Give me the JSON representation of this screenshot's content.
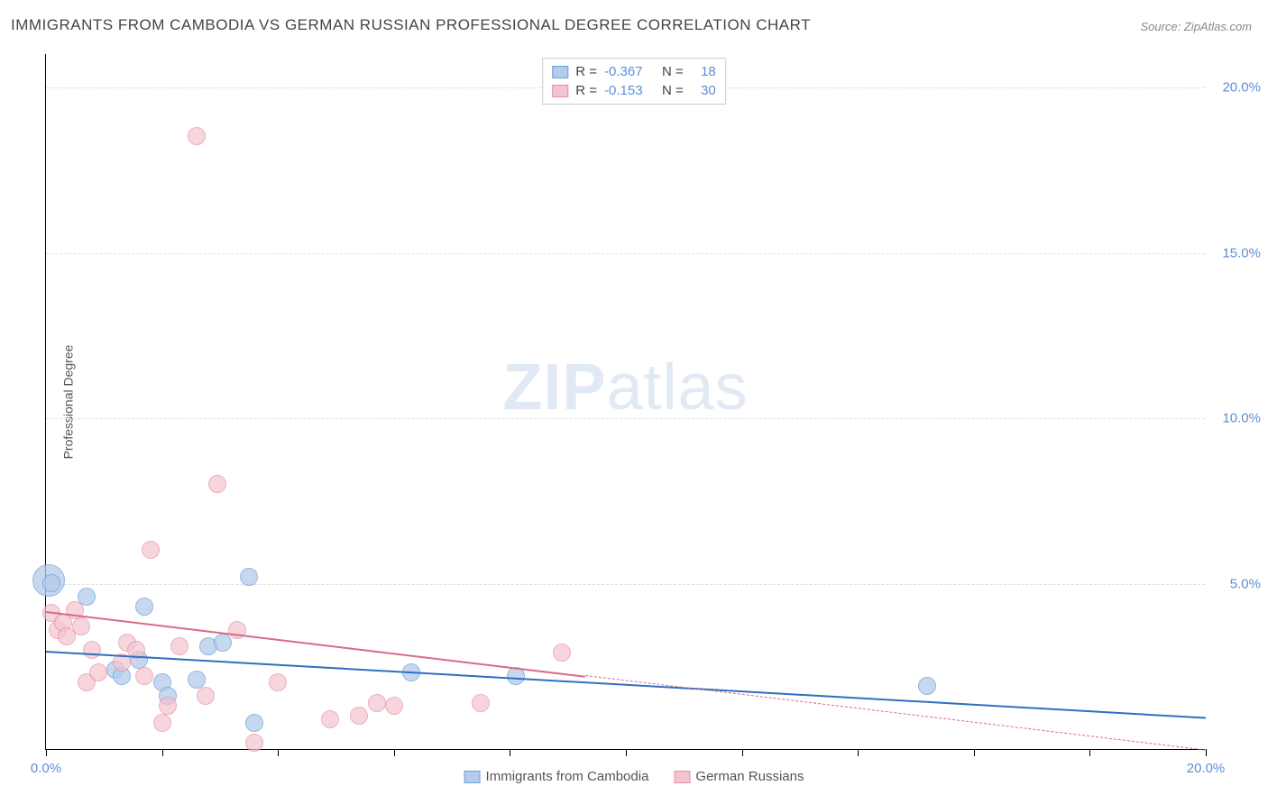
{
  "chart": {
    "type": "scatter",
    "title": "IMMIGRANTS FROM CAMBODIA VS GERMAN RUSSIAN PROFESSIONAL DEGREE CORRELATION CHART",
    "source": "Source: ZipAtlas.com",
    "watermark_text_bold": "ZIP",
    "watermark_text_rest": "atlas",
    "y_axis_label": "Professional Degree",
    "xlim": [
      0,
      20
    ],
    "ylim": [
      0,
      21
    ],
    "x_ticks": [
      0,
      2,
      4,
      6,
      8,
      10,
      12,
      14,
      16,
      18,
      20
    ],
    "x_tick_labels": {
      "0": "0.0%",
      "20": "20.0%"
    },
    "y_ticks": [
      5,
      10,
      15,
      20
    ],
    "y_tick_labels": {
      "5": "5.0%",
      "10": "10.0%",
      "15": "15.0%",
      "20": "20.0%"
    },
    "background_color": "#ffffff",
    "grid_color": "#dddddd",
    "axis_color": "#000000",
    "tick_label_color": "#5b8fd6",
    "title_color": "#444444",
    "title_fontsize": 17,
    "label_fontsize": 14,
    "tick_fontsize": 15
  },
  "series": [
    {
      "name": "Immigrants from Cambodia",
      "color_fill": "#b4cceb",
      "color_stroke": "#6f9fd8",
      "marker_opacity": 0.75,
      "marker_radius": 10,
      "R": "-0.367",
      "N": "18",
      "trend": {
        "x1": 0,
        "y1": 3.0,
        "x2": 20,
        "y2": 1.0,
        "color": "#2e6fc0",
        "width": 2,
        "dash_from_x": null
      },
      "points": [
        {
          "x": 0.05,
          "y": 5.1,
          "r": 18
        },
        {
          "x": 0.1,
          "y": 5.0,
          "r": 10
        },
        {
          "x": 0.7,
          "y": 4.6,
          "r": 10
        },
        {
          "x": 1.2,
          "y": 2.4,
          "r": 10
        },
        {
          "x": 1.3,
          "y": 2.2,
          "r": 10
        },
        {
          "x": 1.6,
          "y": 2.7,
          "r": 10
        },
        {
          "x": 1.7,
          "y": 4.3,
          "r": 10
        },
        {
          "x": 2.0,
          "y": 2.0,
          "r": 10
        },
        {
          "x": 2.1,
          "y": 1.6,
          "r": 10
        },
        {
          "x": 2.6,
          "y": 2.1,
          "r": 10
        },
        {
          "x": 2.8,
          "y": 3.1,
          "r": 10
        },
        {
          "x": 3.05,
          "y": 3.2,
          "r": 10
        },
        {
          "x": 3.5,
          "y": 5.2,
          "r": 10
        },
        {
          "x": 3.6,
          "y": 0.8,
          "r": 10
        },
        {
          "x": 6.3,
          "y": 2.3,
          "r": 10
        },
        {
          "x": 8.1,
          "y": 2.2,
          "r": 10
        },
        {
          "x": 15.2,
          "y": 1.9,
          "r": 10
        }
      ]
    },
    {
      "name": "German Russians",
      "color_fill": "#f3c4cf",
      "color_stroke": "#e78fa4",
      "marker_opacity": 0.7,
      "marker_radius": 10,
      "R": "-0.153",
      "N": "30",
      "trend": {
        "x1": 0,
        "y1": 4.2,
        "x2": 20,
        "y2": 0.0,
        "color": "#d96a88",
        "width": 2,
        "dash_from_x": 9.3
      },
      "points": [
        {
          "x": 0.1,
          "y": 4.1,
          "r": 10
        },
        {
          "x": 0.2,
          "y": 3.6,
          "r": 10
        },
        {
          "x": 0.3,
          "y": 3.8,
          "r": 10
        },
        {
          "x": 0.35,
          "y": 3.4,
          "r": 10
        },
        {
          "x": 0.5,
          "y": 4.2,
          "r": 10
        },
        {
          "x": 0.6,
          "y": 3.7,
          "r": 10
        },
        {
          "x": 0.7,
          "y": 2.0,
          "r": 10
        },
        {
          "x": 0.8,
          "y": 3.0,
          "r": 10
        },
        {
          "x": 0.9,
          "y": 2.3,
          "r": 10
        },
        {
          "x": 1.3,
          "y": 2.6,
          "r": 10
        },
        {
          "x": 1.4,
          "y": 3.2,
          "r": 10
        },
        {
          "x": 1.55,
          "y": 3.0,
          "r": 10
        },
        {
          "x": 1.7,
          "y": 2.2,
          "r": 10
        },
        {
          "x": 1.8,
          "y": 6.0,
          "r": 10
        },
        {
          "x": 2.0,
          "y": 0.8,
          "r": 10
        },
        {
          "x": 2.1,
          "y": 1.3,
          "r": 10
        },
        {
          "x": 2.3,
          "y": 3.1,
          "r": 10
        },
        {
          "x": 2.6,
          "y": 18.5,
          "r": 10
        },
        {
          "x": 2.75,
          "y": 1.6,
          "r": 10
        },
        {
          "x": 2.95,
          "y": 8.0,
          "r": 10
        },
        {
          "x": 3.3,
          "y": 3.6,
          "r": 10
        },
        {
          "x": 3.6,
          "y": 0.2,
          "r": 10
        },
        {
          "x": 4.0,
          "y": 2.0,
          "r": 10
        },
        {
          "x": 4.9,
          "y": 0.9,
          "r": 10
        },
        {
          "x": 5.4,
          "y": 1.0,
          "r": 10
        },
        {
          "x": 5.7,
          "y": 1.4,
          "r": 10
        },
        {
          "x": 6.0,
          "y": 1.3,
          "r": 10
        },
        {
          "x": 7.5,
          "y": 1.4,
          "r": 10
        },
        {
          "x": 8.9,
          "y": 2.9,
          "r": 10
        }
      ]
    }
  ],
  "legend_top": {
    "r_label": "R =",
    "n_label": "N ="
  }
}
